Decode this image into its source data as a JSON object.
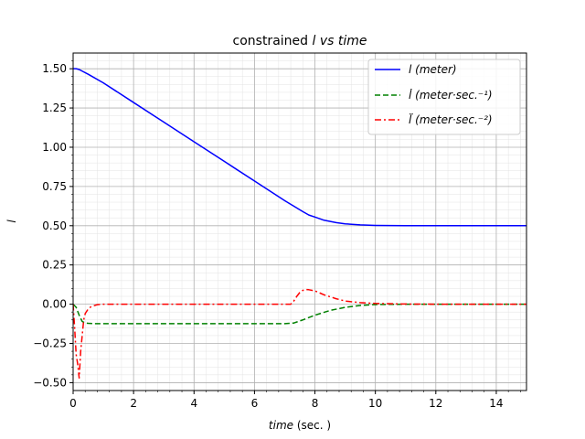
{
  "chart_data": {
    "type": "line",
    "title_main": "constrained ",
    "title_math": "l vs time",
    "xlabel_math": "time",
    "xlabel_unit": " (sec. )",
    "ylabel": "l",
    "xlim": [
      0,
      15
    ],
    "ylim": [
      -0.55,
      1.6
    ],
    "xticks": [
      0,
      2,
      4,
      6,
      8,
      10,
      12,
      14
    ],
    "yticks": [
      -0.5,
      -0.25,
      0.0,
      0.25,
      0.5,
      0.75,
      1.0,
      1.25,
      1.5
    ],
    "ytick_labels": [
      "−0.50",
      "−0.25",
      "0.00",
      "0.25",
      "0.50",
      "0.75",
      "1.00",
      "1.25",
      "1.50"
    ],
    "grid": "major and minor",
    "legend_position": "upper right",
    "series": [
      {
        "name": "l (meter)",
        "color": "#0000ff",
        "style": "solid",
        "x": [
          0,
          0.1,
          0.2,
          0.3,
          0.5,
          1,
          2,
          3,
          4,
          5,
          6,
          7,
          7.3,
          7.6,
          7.8,
          8,
          8.3,
          8.7,
          9,
          9.5,
          10,
          11,
          12,
          13,
          14,
          15
        ],
        "y": [
          1.5,
          1.5,
          1.495,
          1.485,
          1.465,
          1.41,
          1.285,
          1.16,
          1.035,
          0.91,
          0.785,
          0.66,
          0.625,
          0.59,
          0.568,
          0.555,
          0.535,
          0.52,
          0.512,
          0.505,
          0.502,
          0.5,
          0.5,
          0.5,
          0.5,
          0.5
        ]
      },
      {
        "name": "l̇ (meter·sec.⁻¹)",
        "color": "#008000",
        "style": "dashed",
        "x": [
          0,
          0.1,
          0.2,
          0.3,
          0.4,
          0.5,
          0.7,
          1,
          2,
          3,
          4,
          5,
          6,
          7,
          7.3,
          7.6,
          8,
          8.5,
          9,
          9.5,
          10,
          11,
          12,
          13,
          14,
          15
        ],
        "y": [
          0,
          -0.02,
          -0.07,
          -0.11,
          -0.12,
          -0.122,
          -0.124,
          -0.124,
          -0.124,
          -0.124,
          -0.124,
          -0.124,
          -0.124,
          -0.124,
          -0.12,
          -0.1,
          -0.07,
          -0.04,
          -0.02,
          -0.008,
          -0.002,
          0,
          0,
          0,
          0,
          0
        ]
      },
      {
        "name": "l̈ (meter·sec.⁻²)",
        "color": "#ff0000",
        "style": "dashdot",
        "x": [
          0,
          0.05,
          0.1,
          0.15,
          0.2,
          0.25,
          0.3,
          0.35,
          0.4,
          0.5,
          0.6,
          0.8,
          1,
          2,
          3,
          4,
          5,
          6,
          7,
          7.2,
          7.3,
          7.4,
          7.5,
          7.6,
          7.7,
          7.8,
          8,
          8.3,
          8.7,
          9,
          9.5,
          10,
          11,
          12,
          13,
          14,
          15
        ],
        "y": [
          0,
          -0.15,
          -0.32,
          -0.38,
          -0.47,
          -0.3,
          -0.2,
          -0.1,
          -0.06,
          -0.03,
          -0.015,
          -0.003,
          0,
          0,
          0,
          0,
          0,
          0,
          0,
          0,
          0.02,
          0.05,
          0.075,
          0.088,
          0.093,
          0.092,
          0.085,
          0.06,
          0.035,
          0.02,
          0.01,
          0.005,
          0.001,
          0,
          0,
          0,
          0
        ]
      }
    ]
  }
}
